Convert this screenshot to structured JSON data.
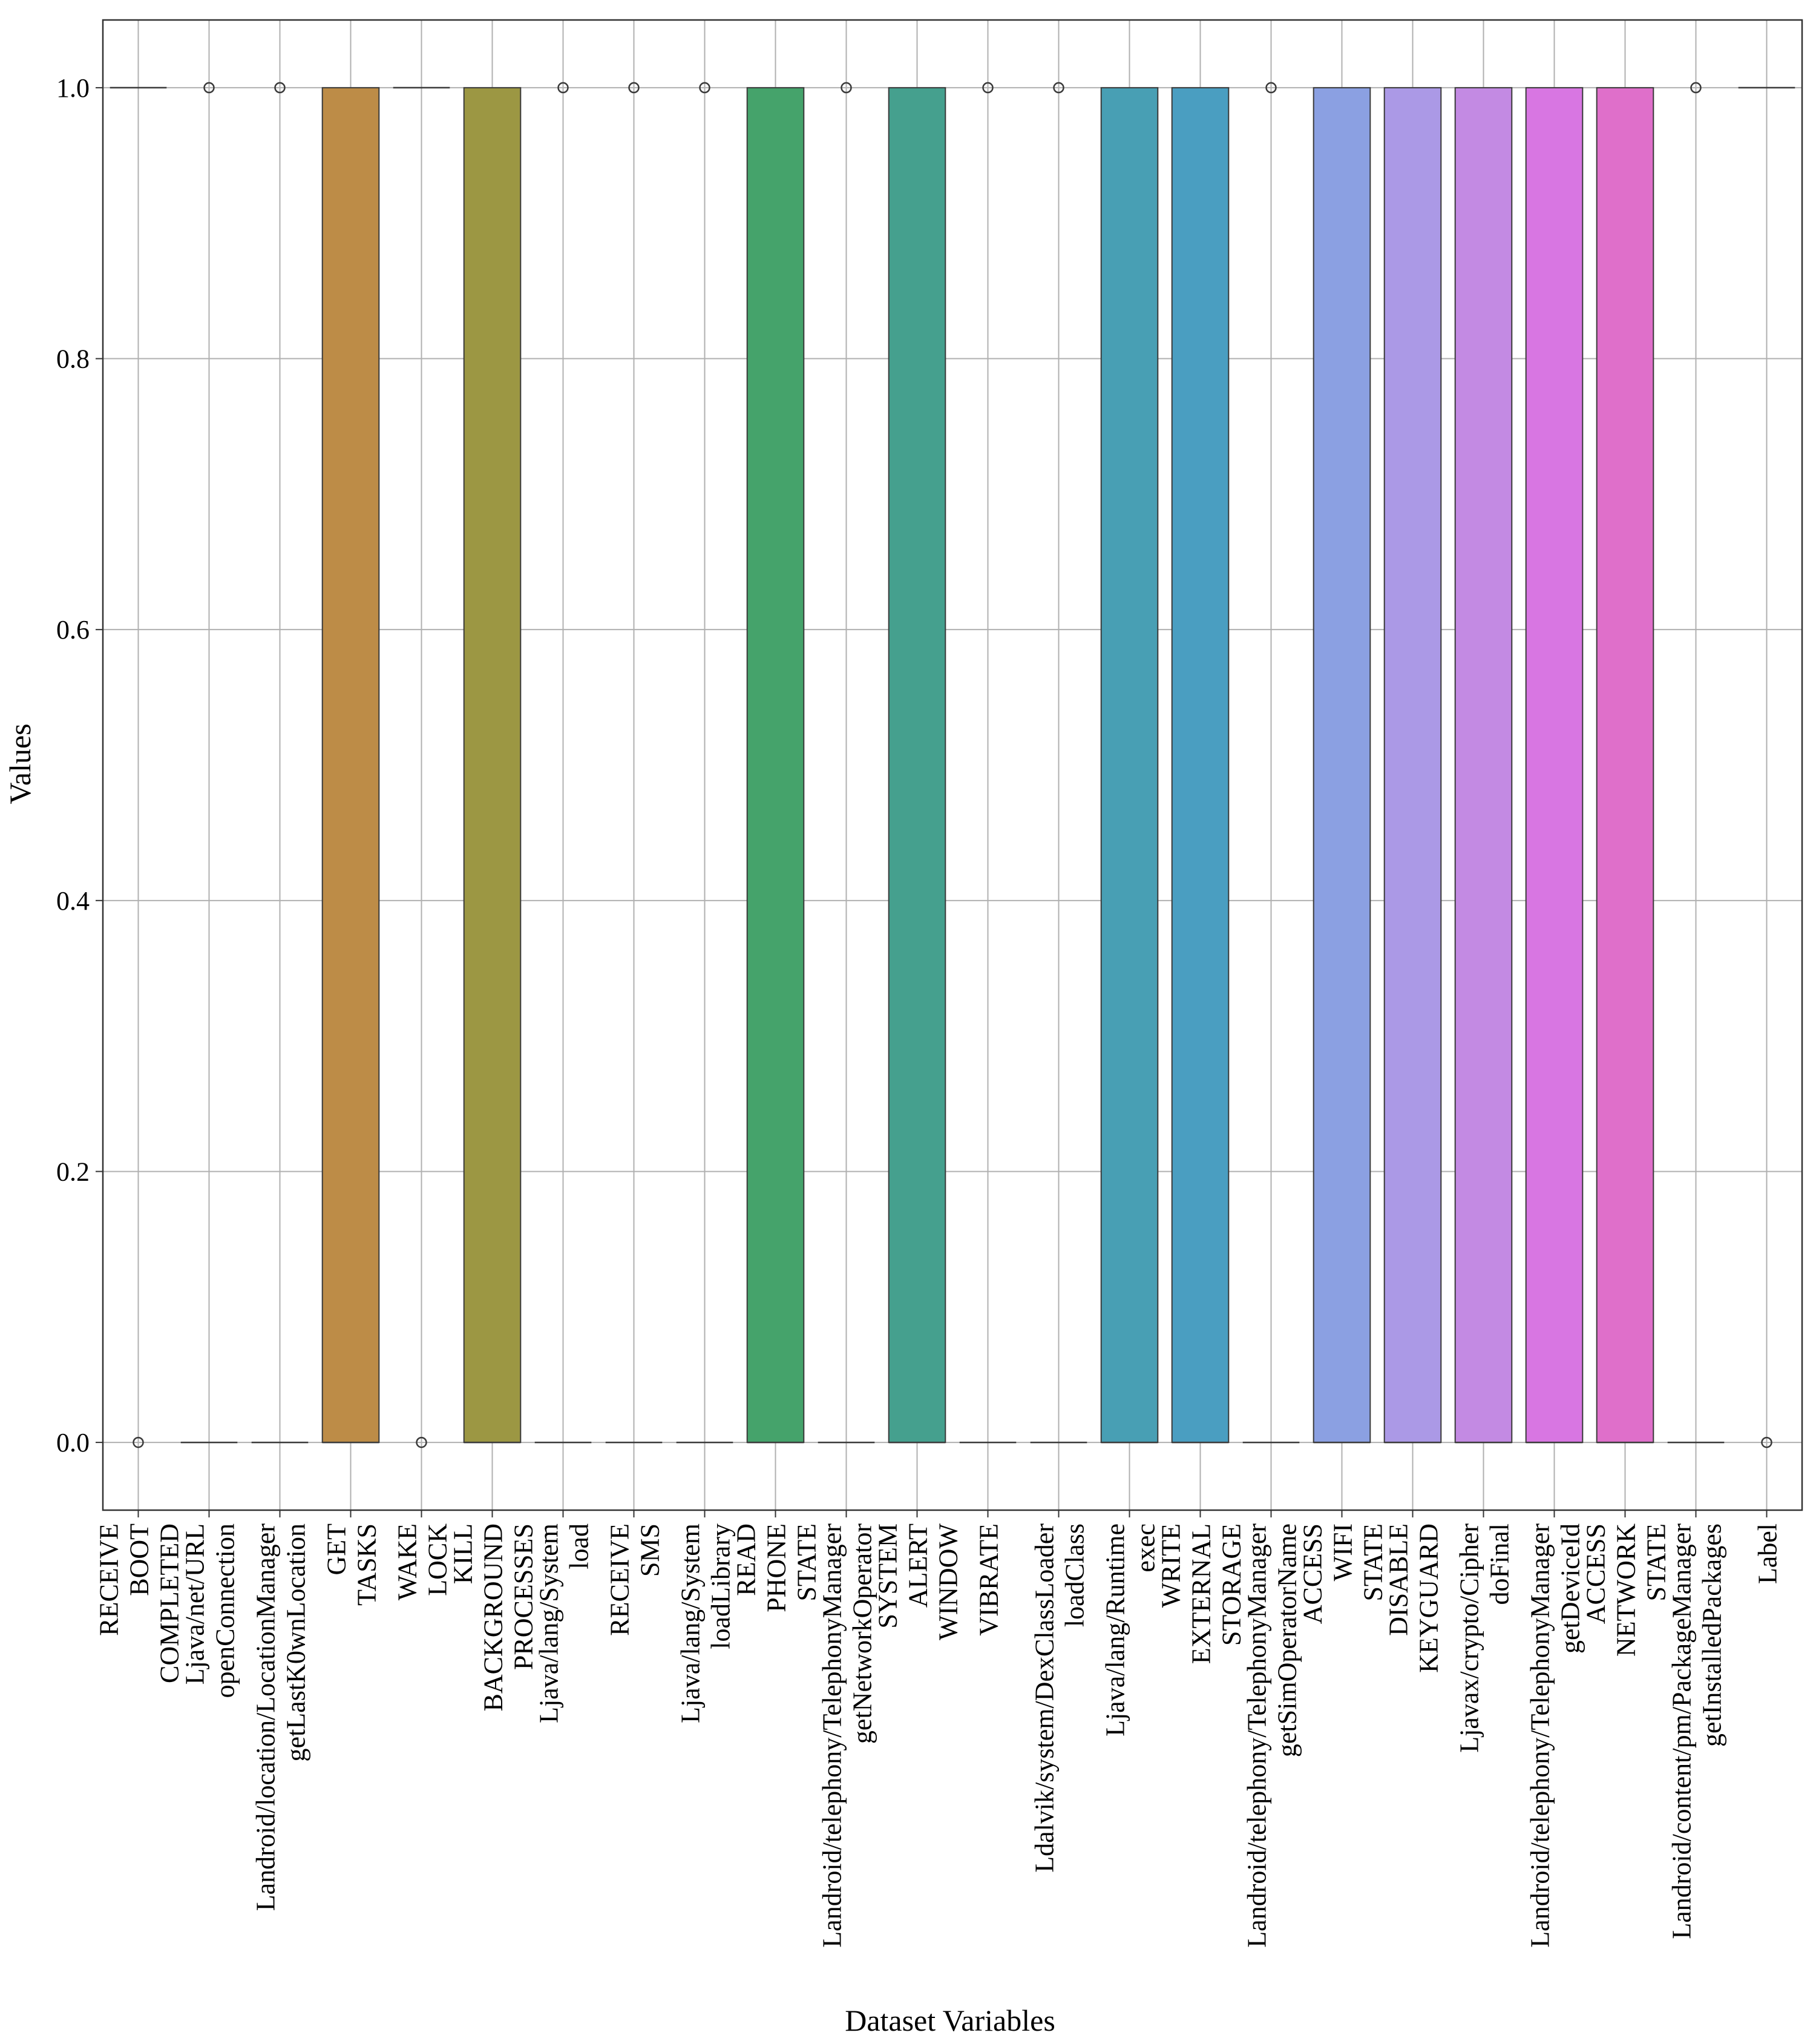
{
  "chart_data": {
    "type": "boxplot",
    "title": "",
    "xlabel": "Dataset Variables",
    "ylabel": "Values",
    "ylim": [
      -0.05,
      1.05
    ],
    "yticks": [
      "0.0",
      "0.2",
      "0.4",
      "0.6",
      "0.8",
      "1.0"
    ],
    "ytick_values": [
      0,
      0.2,
      0.4,
      0.6,
      0.8,
      1.0
    ],
    "grid": true,
    "variables": [
      {
        "name": "RECEIVE_BOOT_COMPLETED",
        "label_lines": [
          "RECEIVE",
          "BOOT",
          "COMPLETED"
        ],
        "q1": 1,
        "median": 1,
        "q3": 1,
        "outliers": [
          0
        ],
        "color": "#d9868f"
      },
      {
        "name": "Ljava/net/URL openConnection",
        "label_lines": [
          "Ljava/net/URL",
          "openConnection"
        ],
        "q1": 0,
        "median": 0,
        "q3": 0,
        "outliers": [
          1
        ],
        "color": "#d48c6e"
      },
      {
        "name": "Landroid/location/LocationManager getLastK0wnLocation",
        "label_lines": [
          "Landroid/location/LocationManager",
          "getLastK0wnLocation"
        ],
        "q1": 0,
        "median": 0,
        "q3": 0,
        "outliers": [
          1
        ],
        "color": "#c98f55"
      },
      {
        "name": "GET_TASKS",
        "label_lines": [
          "GET",
          "TASKS"
        ],
        "q1": 0,
        "median": 0,
        "q3": 1,
        "outliers": [],
        "color": "#bd8c47"
      },
      {
        "name": "WAKE_LOCK",
        "label_lines": [
          "WAKE",
          "LOCK"
        ],
        "q1": 1,
        "median": 1,
        "q3": 1,
        "outliers": [
          0
        ],
        "color": "#ad9246"
      },
      {
        "name": "KILL_BACKGROUND_PROCESSES",
        "label_lines": [
          "KILL",
          "BACKGROUND",
          "PROCESSES"
        ],
        "q1": 0,
        "median": 0,
        "q3": 1,
        "outliers": [],
        "color": "#9c9743"
      },
      {
        "name": "Ljava/lang/System load",
        "label_lines": [
          "Ljava/lang/System",
          "load"
        ],
        "q1": 0,
        "median": 0,
        "q3": 0,
        "outliers": [
          1
        ],
        "color": "#8a9b45"
      },
      {
        "name": "RECEIVE_SMS",
        "label_lines": [
          "RECEIVE",
          "SMS"
        ],
        "q1": 0,
        "median": 0,
        "q3": 0,
        "outliers": [
          1
        ],
        "color": "#6fa04a"
      },
      {
        "name": "Ljava/lang/System loadLibrary",
        "label_lines": [
          "Ljava/lang/System",
          "loadLibrary"
        ],
        "q1": 0,
        "median": 0,
        "q3": 0,
        "outliers": [
          1
        ],
        "color": "#52a35a"
      },
      {
        "name": "READ_PHONE_STATE",
        "label_lines": [
          "READ",
          "PHONE",
          "STATE"
        ],
        "q1": 0,
        "median": 0,
        "q3": 1,
        "outliers": [],
        "color": "#45a36b"
      },
      {
        "name": "Landroid/telephony/TelephonyManager getNetworkOperator",
        "label_lines": [
          "Landroid/telephony/TelephonyManager",
          "getNetworkOperator"
        ],
        "q1": 0,
        "median": 0,
        "q3": 0,
        "outliers": [
          1
        ],
        "color": "#44a27e"
      },
      {
        "name": "SYSTEM_ALERT_WINDOW",
        "label_lines": [
          "SYSTEM",
          "ALERT",
          "WINDOW"
        ],
        "q1": 0,
        "median": 0,
        "q3": 1,
        "outliers": [],
        "color": "#45a08e"
      },
      {
        "name": "VIBRATE",
        "label_lines": [
          "VIBRATE"
        ],
        "q1": 0,
        "median": 0,
        "q3": 0,
        "outliers": [
          1
        ],
        "color": "#46a09c"
      },
      {
        "name": "Ldalvik/system/DexClassLoader loadClass",
        "label_lines": [
          "Ldalvik/system/DexClassLoader",
          "loadClass"
        ],
        "q1": 0,
        "median": 0,
        "q3": 0,
        "outliers": [
          1
        ],
        "color": "#479fa9"
      },
      {
        "name": "Ljava/lang/Runtime exec",
        "label_lines": [
          "Ljava/lang/Runtime",
          "exec"
        ],
        "q1": 0,
        "median": 0,
        "q3": 1,
        "outliers": [],
        "color": "#489fb4"
      },
      {
        "name": "WRITE_EXTERNAL_STORAGE",
        "label_lines": [
          "WRITE",
          "EXTERNAL",
          "STORAGE"
        ],
        "q1": 0,
        "median": 0,
        "q3": 1,
        "outliers": [],
        "color": "#4a9ec1"
      },
      {
        "name": "Landroid/telephony/TelephonyManager getSimOperatorName",
        "label_lines": [
          "Landroid/telephony/TelephonyManager",
          "getSimOperatorName"
        ],
        "q1": 0,
        "median": 0,
        "q3": 0,
        "outliers": [
          1
        ],
        "color": "#6f9fd6"
      },
      {
        "name": "ACCESS_WIFI_STATE",
        "label_lines": [
          "ACCESS",
          "WIFI",
          "STATE"
        ],
        "q1": 0,
        "median": 0,
        "q3": 1,
        "outliers": [],
        "color": "#8ba0e2"
      },
      {
        "name": "DISABLE_KEYGUARD",
        "label_lines": [
          "DISABLE",
          "KEYGUARD"
        ],
        "q1": 0,
        "median": 0,
        "q3": 1,
        "outliers": [],
        "color": "#ab99e6"
      },
      {
        "name": "Ljavax/crypto/Cipher doFinal",
        "label_lines": [
          "Ljavax/crypto/Cipher",
          "doFinal"
        ],
        "q1": 0,
        "median": 0,
        "q3": 1,
        "outliers": [],
        "color": "#c38ae3"
      },
      {
        "name": "Landroid/telephony/TelephonyManager getDeviceId",
        "label_lines": [
          "Landroid/telephony/TelephonyManager",
          "getDeviceId"
        ],
        "q1": 0,
        "median": 0,
        "q3": 1,
        "outliers": [],
        "color": "#d876e2"
      },
      {
        "name": "ACCESS_NETWORK_STATE",
        "label_lines": [
          "ACCESS",
          "NETWORK",
          "STATE"
        ],
        "q1": 0,
        "median": 0,
        "q3": 1,
        "outliers": [],
        "color": "#df6fca"
      },
      {
        "name": "Landroid/content/pm/PackageManager getInstalledPackages",
        "label_lines": [
          "Landroid/content/pm/PackageManager",
          "getInstalledPackages"
        ],
        "q1": 0,
        "median": 0,
        "q3": 0,
        "outliers": [
          1
        ],
        "color": "#e274b6"
      },
      {
        "name": "Label",
        "label_lines": [
          "Label"
        ],
        "q1": 1,
        "median": 1,
        "q3": 1,
        "outliers": [
          0
        ],
        "color": "#e27ba0"
      }
    ]
  }
}
